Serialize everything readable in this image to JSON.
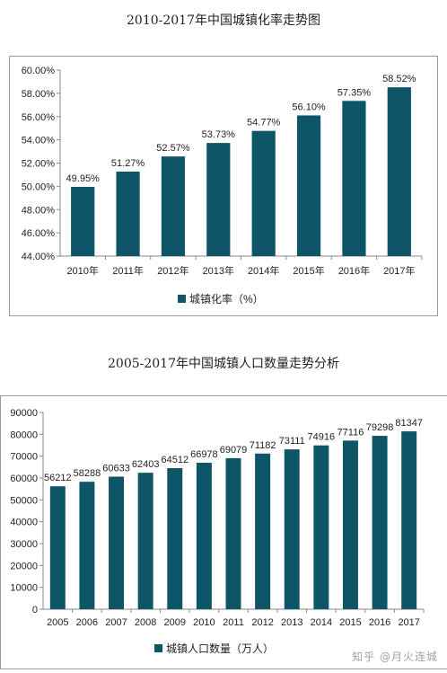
{
  "colors": {
    "bar": "#0e5568",
    "axis": "#888888",
    "text": "#222222"
  },
  "watermark": "知乎 @月火连城",
  "chart_data": [
    {
      "type": "bar",
      "title": "2010-2017年中国城镇化率走势图",
      "categories": [
        "2010年",
        "2011年",
        "2012年",
        "2013年",
        "2014年",
        "2015年",
        "2016年",
        "2017年"
      ],
      "series": [
        {
          "name": "城镇化率（%）",
          "values": [
            49.95,
            51.27,
            52.57,
            53.73,
            54.77,
            56.1,
            57.35,
            58.52
          ]
        }
      ],
      "data_labels": [
        "49.95%",
        "51.27%",
        "52.57%",
        "53.73%",
        "54.77%",
        "56.10%",
        "57.35%",
        "58.52%"
      ],
      "y_ticks": [
        "44.00%",
        "46.00%",
        "48.00%",
        "50.00%",
        "52.00%",
        "54.00%",
        "56.00%",
        "58.00%",
        "60.00%"
      ],
      "ylim": [
        44,
        60
      ],
      "grid": false,
      "legend": "bottom"
    },
    {
      "type": "bar",
      "title": "2005-2017年中国城镇人口数量走势分析",
      "categories": [
        "2005",
        "2006",
        "2007",
        "2008",
        "2009",
        "2010",
        "2011",
        "2012",
        "2013",
        "2014",
        "2015",
        "2016",
        "2017"
      ],
      "series": [
        {
          "name": "城镇人口数量（万人）",
          "values": [
            56212,
            58288,
            60633,
            62403,
            64512,
            66978,
            69079,
            71182,
            73111,
            74916,
            77116,
            79298,
            81347
          ]
        }
      ],
      "data_labels": [
        "56212",
        "58288",
        "60633",
        "62403",
        "64512",
        "66978",
        "69079",
        "71182",
        "73111",
        "74916",
        "77116",
        "79298",
        "81347"
      ],
      "y_ticks": [
        "0",
        "10000",
        "20000",
        "30000",
        "40000",
        "50000",
        "60000",
        "70000",
        "80000",
        "90000"
      ],
      "ylim": [
        0,
        90000
      ],
      "grid": false,
      "legend": "bottom"
    }
  ]
}
